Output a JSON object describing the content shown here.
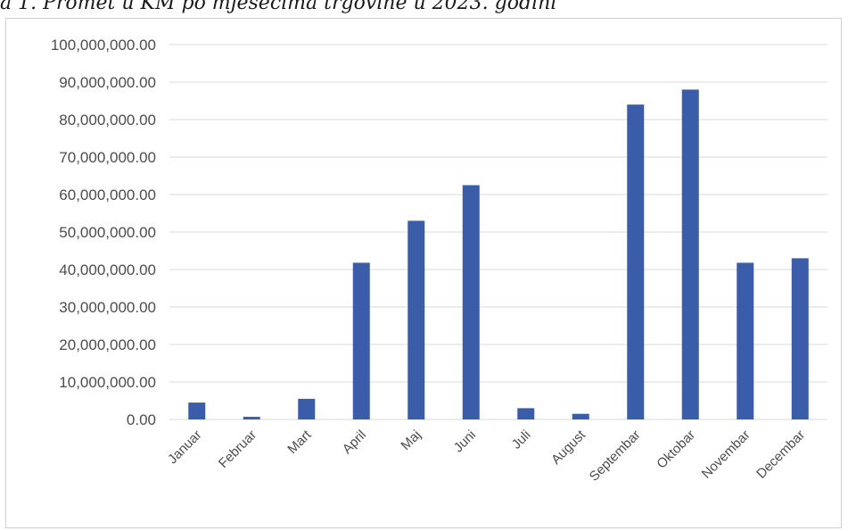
{
  "caption": "a 1. Promet u KM po mjesecima trgovine u 2023. godini",
  "chart_data": {
    "type": "bar",
    "title": "",
    "xlabel": "",
    "ylabel": "",
    "ylim": [
      0,
      100000000
    ],
    "yticks": [
      "0.00",
      "10,000,000.00",
      "20,000,000.00",
      "30,000,000.00",
      "40,000,000.00",
      "50,000,000.00",
      "60,000,000.00",
      "70,000,000.00",
      "80,000,000.00",
      "90,000,000.00",
      "100,000,000.00"
    ],
    "categories": [
      "Januar",
      "Februar",
      "Mart",
      "April",
      "Maj",
      "Juni",
      "Juli",
      "August",
      "Septembar",
      "Oktobar",
      "Novembar",
      "Decembar"
    ],
    "values": [
      4500000,
      700000,
      5500000,
      41800000,
      53000000,
      62500000,
      3000000,
      1500000,
      84000000,
      88000000,
      41800000,
      43000000
    ],
    "grid": true,
    "bar_color": "#3b5ca8",
    "grid_color": "#d9d9d9"
  }
}
